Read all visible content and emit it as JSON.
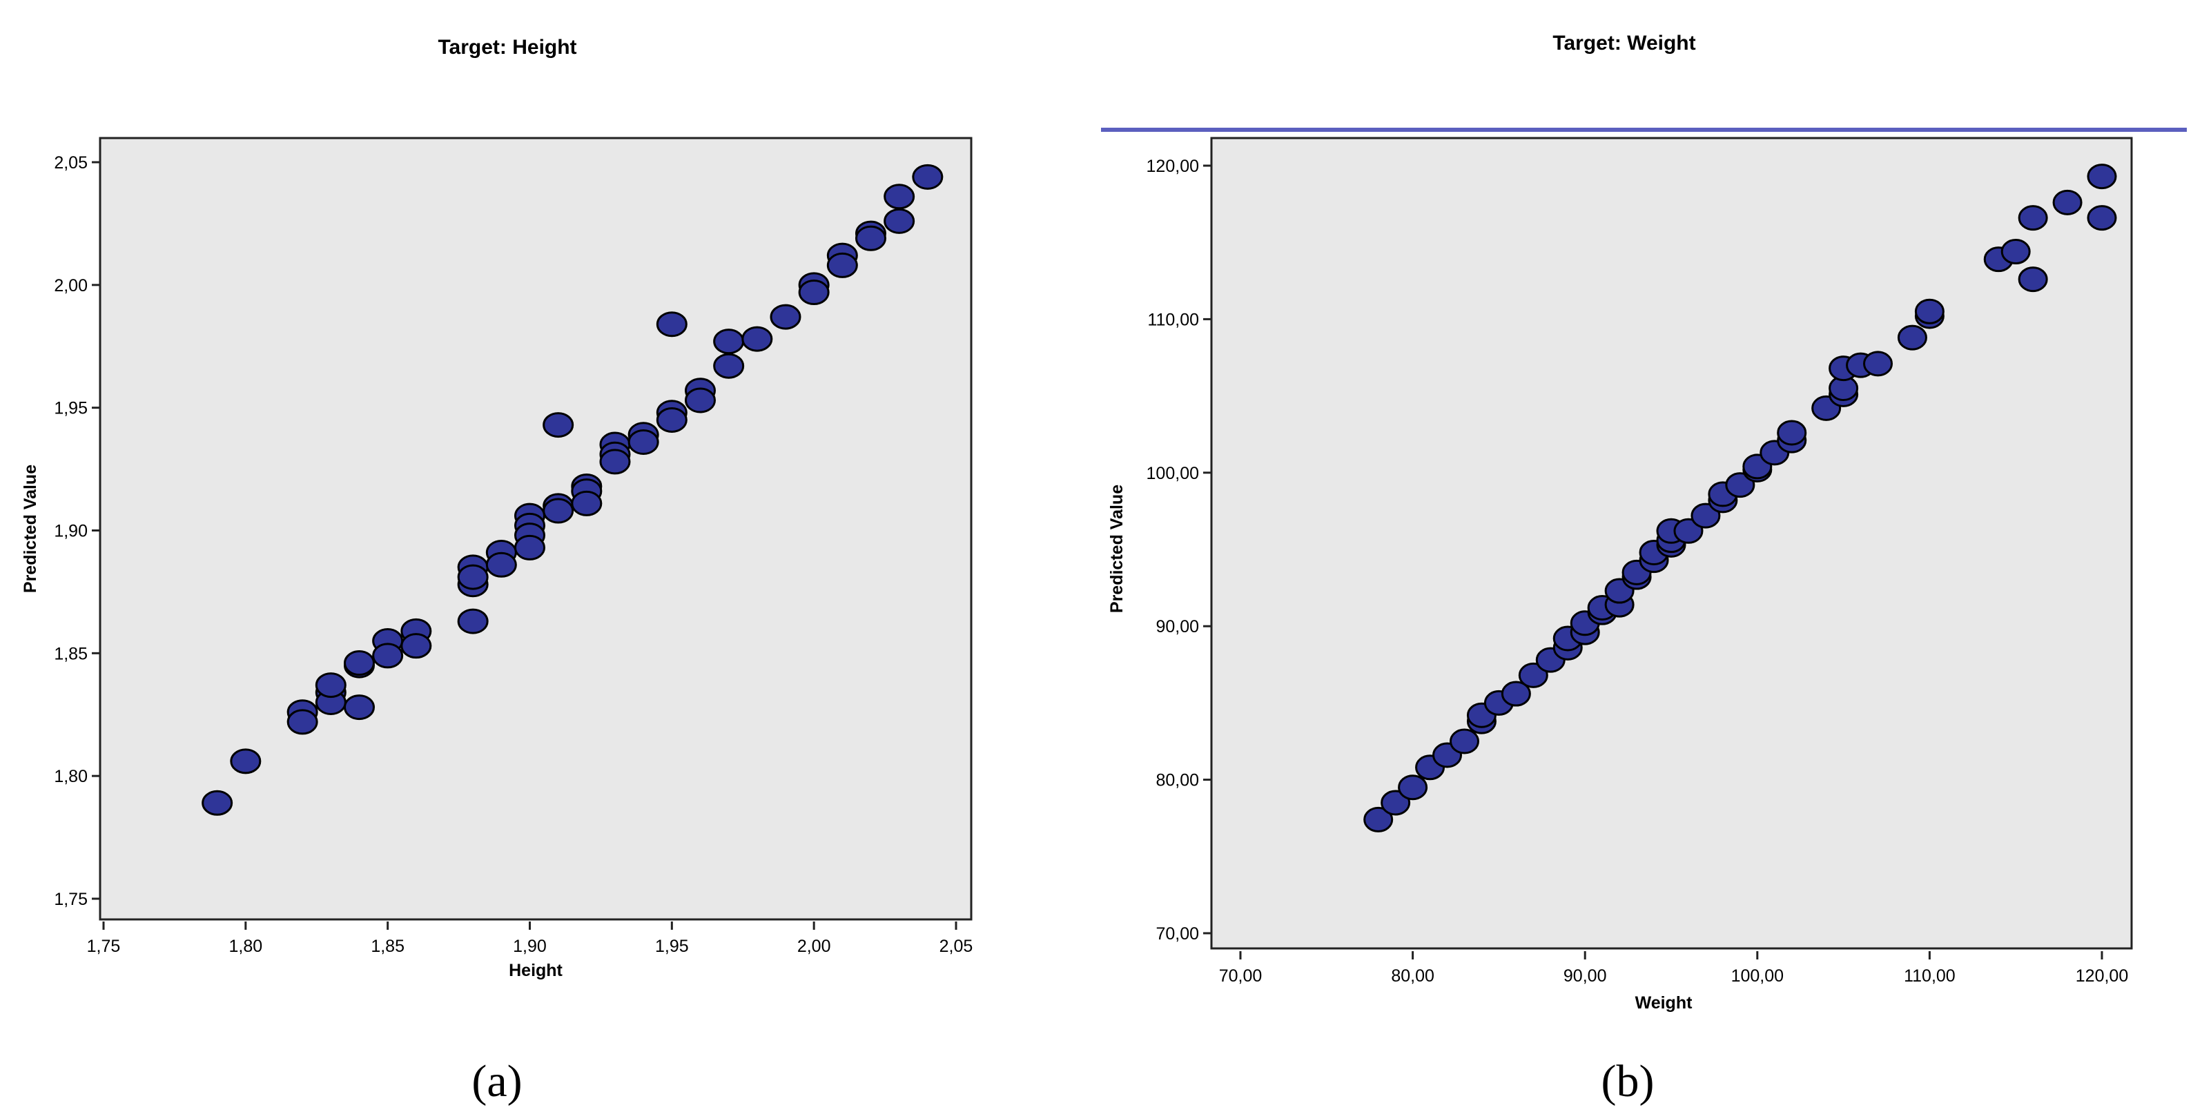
{
  "colors": {
    "point_fill": "#2f3598",
    "point_edge": "#000000",
    "plot_bg": "#e8e8e8",
    "rule_line": "#5b5fbf"
  },
  "chart_data": [
    {
      "type": "scatter",
      "panel_label": "(a)",
      "title": "Target: Height",
      "xlabel": "Height",
      "ylabel": "Predicted Value",
      "xlim": [
        1.75,
        2.05
      ],
      "ylim": [
        1.75,
        2.05
      ],
      "xticks": [
        "1,75",
        "1,80",
        "1,85",
        "1,90",
        "1,95",
        "2,00",
        "2,05"
      ],
      "yticks": [
        "1,75",
        "1,80",
        "1,85",
        "1,90",
        "1,95",
        "2,00",
        "2,05"
      ],
      "grid": false,
      "points": [
        [
          1.79,
          1.789
        ],
        [
          1.8,
          1.806
        ],
        [
          1.82,
          1.826
        ],
        [
          1.82,
          1.822
        ],
        [
          1.83,
          1.834
        ],
        [
          1.83,
          1.83
        ],
        [
          1.83,
          1.837
        ],
        [
          1.84,
          1.845
        ],
        [
          1.84,
          1.846
        ],
        [
          1.84,
          1.828
        ],
        [
          1.85,
          1.855
        ],
        [
          1.85,
          1.849
        ],
        [
          1.86,
          1.859
        ],
        [
          1.86,
          1.853
        ],
        [
          1.88,
          1.885
        ],
        [
          1.88,
          1.878
        ],
        [
          1.88,
          1.881
        ],
        [
          1.88,
          1.863
        ],
        [
          1.89,
          1.891
        ],
        [
          1.89,
          1.886
        ],
        [
          1.9,
          1.906
        ],
        [
          1.9,
          1.902
        ],
        [
          1.9,
          1.898
        ],
        [
          1.9,
          1.893
        ],
        [
          1.91,
          1.91
        ],
        [
          1.91,
          1.908
        ],
        [
          1.91,
          1.943
        ],
        [
          1.92,
          1.918
        ],
        [
          1.92,
          1.916
        ],
        [
          1.92,
          1.911
        ],
        [
          1.93,
          1.935
        ],
        [
          1.93,
          1.931
        ],
        [
          1.93,
          1.928
        ],
        [
          1.94,
          1.939
        ],
        [
          1.94,
          1.936
        ],
        [
          1.95,
          1.948
        ],
        [
          1.95,
          1.945
        ],
        [
          1.95,
          1.984
        ],
        [
          1.96,
          1.957
        ],
        [
          1.96,
          1.953
        ],
        [
          1.97,
          1.977
        ],
        [
          1.97,
          1.967
        ],
        [
          1.98,
          1.978
        ],
        [
          1.99,
          1.987
        ],
        [
          2.0,
          2.0
        ],
        [
          2.0,
          1.997
        ],
        [
          2.01,
          2.012
        ],
        [
          2.01,
          2.008
        ],
        [
          2.02,
          2.021
        ],
        [
          2.02,
          2.019
        ],
        [
          2.03,
          2.036
        ],
        [
          2.03,
          2.026
        ],
        [
          2.04,
          2.044
        ]
      ]
    },
    {
      "type": "scatter",
      "panel_label": "(b)",
      "title": "Target: Weight",
      "xlabel": "Weight",
      "ylabel": "Predicted Value",
      "xlim": [
        70,
        120
      ],
      "ylim": [
        70,
        120
      ],
      "xticks": [
        "70,00",
        "80,00",
        "90,00",
        "100,00",
        "110,00",
        "120,00"
      ],
      "yticks": [
        "70,00",
        "80,00",
        "90,00",
        "100,00",
        "110,00",
        "120,00"
      ],
      "grid": false,
      "points": [
        [
          78,
          77.4
        ],
        [
          79,
          78.5
        ],
        [
          80,
          79.5
        ],
        [
          81,
          80.8
        ],
        [
          82,
          81.6
        ],
        [
          83,
          82.5
        ],
        [
          84,
          83.8
        ],
        [
          84,
          84.2
        ],
        [
          85,
          85.0
        ],
        [
          86,
          85.6
        ],
        [
          87,
          86.8
        ],
        [
          88,
          87.8
        ],
        [
          89,
          88.6
        ],
        [
          89,
          89.2
        ],
        [
          90,
          89.6
        ],
        [
          90,
          90.2
        ],
        [
          91,
          90.9
        ],
        [
          91,
          91.2
        ],
        [
          92,
          91.4
        ],
        [
          92,
          92.3
        ],
        [
          93,
          93.2
        ],
        [
          93,
          93.5
        ],
        [
          94,
          94.3
        ],
        [
          94,
          94.8
        ],
        [
          95,
          95.3
        ],
        [
          95,
          95.6
        ],
        [
          95,
          96.2
        ],
        [
          96,
          96.2
        ],
        [
          97,
          97.2
        ],
        [
          98,
          98.2
        ],
        [
          98,
          98.6
        ],
        [
          99,
          99.2
        ],
        [
          100,
          100.2
        ],
        [
          100,
          100.4
        ],
        [
          101,
          101.3
        ],
        [
          102,
          102.1
        ],
        [
          102,
          102.6
        ],
        [
          104,
          104.2
        ],
        [
          105,
          105.1
        ],
        [
          105,
          105.5
        ],
        [
          105,
          106.8
        ],
        [
          106,
          107.0
        ],
        [
          107,
          107.1
        ],
        [
          109,
          108.8
        ],
        [
          110,
          110.2
        ],
        [
          110,
          110.5
        ],
        [
          114,
          113.9
        ],
        [
          115,
          114.4
        ],
        [
          116,
          112.6
        ],
        [
          116,
          116.6
        ],
        [
          118,
          117.6
        ],
        [
          120,
          119.3
        ],
        [
          120,
          116.6
        ]
      ]
    }
  ]
}
